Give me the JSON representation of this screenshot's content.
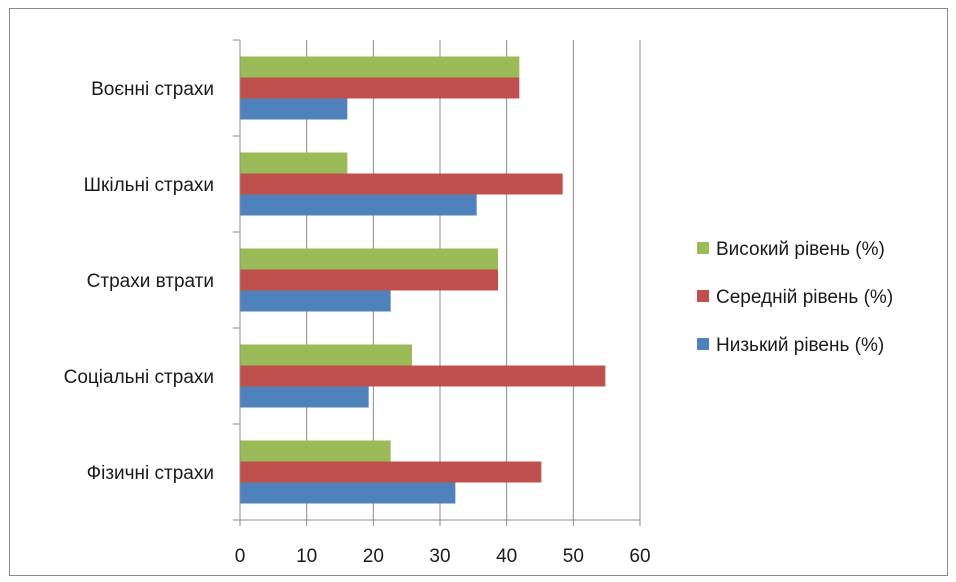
{
  "chart_data": {
    "type": "bar",
    "orientation": "horizontal",
    "categories": [
      "Фізичні страхи",
      "Соціальні страхи",
      "Страхи втрати",
      "Шкільні страхи",
      "Воєнні страхи"
    ],
    "series": [
      {
        "name": "Низький рівень (%)",
        "color": "#4f81bd",
        "values": [
          32.3,
          19.3,
          22.6,
          35.5,
          16.1
        ]
      },
      {
        "name": "Середній рівень (%)",
        "color": "#c0504d",
        "values": [
          45.2,
          54.8,
          38.7,
          48.4,
          41.9
        ]
      },
      {
        "name": "Високий рівень (%)",
        "color": "#9bbb59",
        "values": [
          22.6,
          25.8,
          38.7,
          16.1,
          41.9
        ]
      }
    ],
    "xlim": [
      0,
      60
    ],
    "xticks": [
      "0",
      "10",
      "20",
      "30",
      "40",
      "50",
      "60"
    ],
    "grid": "vertical",
    "legend_position": "right",
    "legend_order": [
      "Високий рівень (%)",
      "Середній рівень (%)",
      "Низький рівень (%)"
    ],
    "title": "",
    "xlabel": "",
    "ylabel": ""
  }
}
